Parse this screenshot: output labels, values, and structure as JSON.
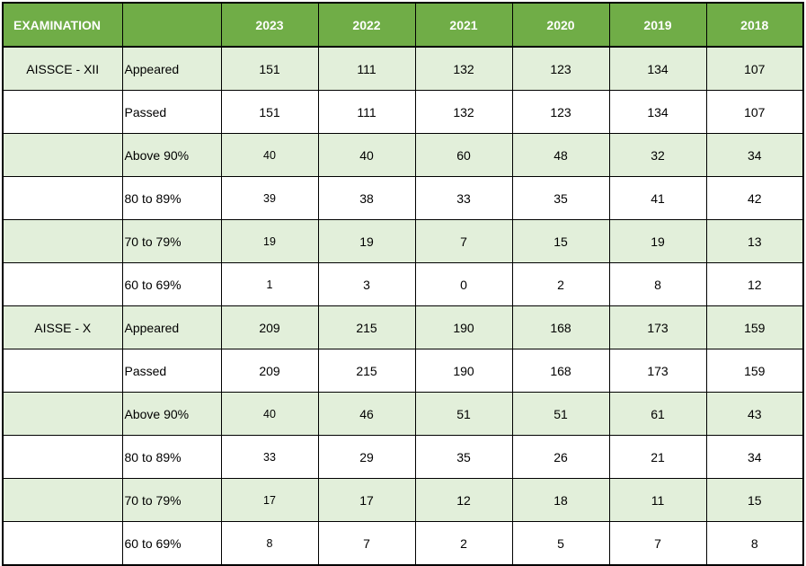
{
  "header": {
    "examination": "EXAMINATION",
    "category": "",
    "years": [
      "2023",
      "2022",
      "2021",
      "2020",
      "2019",
      "2018"
    ]
  },
  "rows": [
    {
      "exam": "AISSCE - XII",
      "category": "Appeared",
      "values": [
        "151",
        "111",
        "132",
        "123",
        "134",
        "107"
      ]
    },
    {
      "exam": "",
      "category": "Passed",
      "values": [
        "151",
        "111",
        "132",
        "123",
        "134",
        "107"
      ]
    },
    {
      "exam": "",
      "category": "Above 90%",
      "values": [
        "40",
        "40",
        "60",
        "48",
        "32",
        "34"
      ]
    },
    {
      "exam": "",
      "category": "80 to 89%",
      "values": [
        "39",
        "38",
        "33",
        "35",
        "41",
        "42"
      ]
    },
    {
      "exam": "",
      "category": "70 to 79%",
      "values": [
        "19",
        "19",
        "7",
        "15",
        "19",
        "13"
      ]
    },
    {
      "exam": "",
      "category": "60 to 69%",
      "values": [
        "1",
        "3",
        "0",
        "2",
        "8",
        "12"
      ]
    },
    {
      "exam": "AISSE - X",
      "category": "Appeared",
      "values": [
        "209",
        "215",
        "190",
        "168",
        "173",
        "159"
      ]
    },
    {
      "exam": "",
      "category": "Passed",
      "values": [
        "209",
        "215",
        "190",
        "168",
        "173",
        "159"
      ]
    },
    {
      "exam": "",
      "category": "Above 90%",
      "values": [
        "40",
        "46",
        "51",
        "51",
        "61",
        "43"
      ]
    },
    {
      "exam": "",
      "category": "80 to 89%",
      "values": [
        "33",
        "29",
        "35",
        "26",
        "21",
        "34"
      ]
    },
    {
      "exam": "",
      "category": "70 to 79%",
      "values": [
        "17",
        "17",
        "12",
        "18",
        "11",
        "15"
      ]
    },
    {
      "exam": "",
      "category": "60 to 69%",
      "values": [
        "8",
        "7",
        "2",
        "5",
        "7",
        "8"
      ]
    }
  ],
  "colors": {
    "header_bg": "#70ad47",
    "header_text": "#ffffff",
    "band_bg": "#e2efda",
    "plain_bg": "#ffffff",
    "border": "#000000"
  }
}
